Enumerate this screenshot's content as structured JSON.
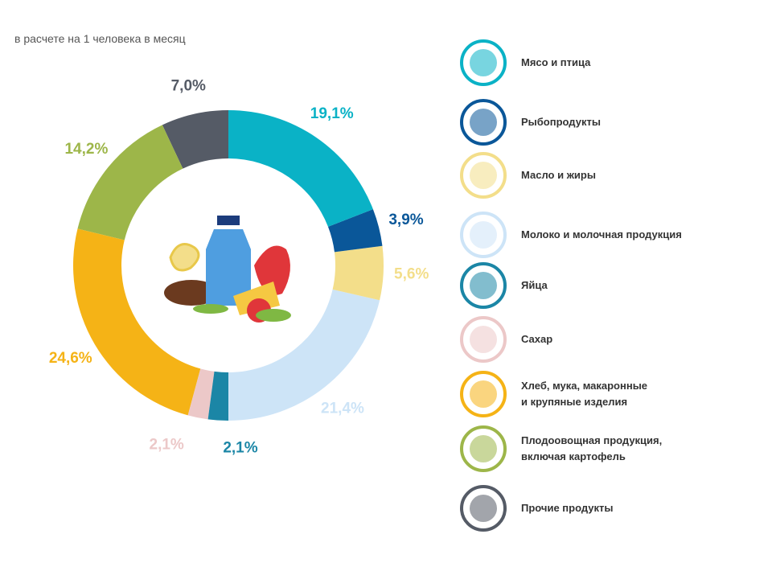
{
  "chart_data": {
    "type": "pie",
    "subtitle": "в расчете на 1 человека в месяц",
    "donut": true,
    "categories": [
      "Мясо и птица",
      "Рыбопродукты",
      "Масло и жиры",
      "Молоко и молочная продукция",
      "Яйца",
      "Сахар",
      "Хлеб, мука, макаронные\nи крупяные изделия",
      "Плодоовощная продукция,\nвключая картофель",
      "Прочие продукты"
    ],
    "values": [
      19.1,
      3.9,
      5.6,
      21.4,
      2.1,
      2.1,
      24.6,
      14.2,
      7.0
    ],
    "value_labels": [
      "19,1%",
      "3,9%",
      "5,6%",
      "21,4%",
      "2,1%",
      "2,1%",
      "24,6%",
      "14,2%",
      "7,0%"
    ],
    "colors": [
      "#0ab2c6",
      "#0a5799",
      "#f3de8a",
      "#cde4f7",
      "#1b86a6",
      "#ecc8c8",
      "#f5b316",
      "#9db649",
      "#555b66"
    ]
  }
}
